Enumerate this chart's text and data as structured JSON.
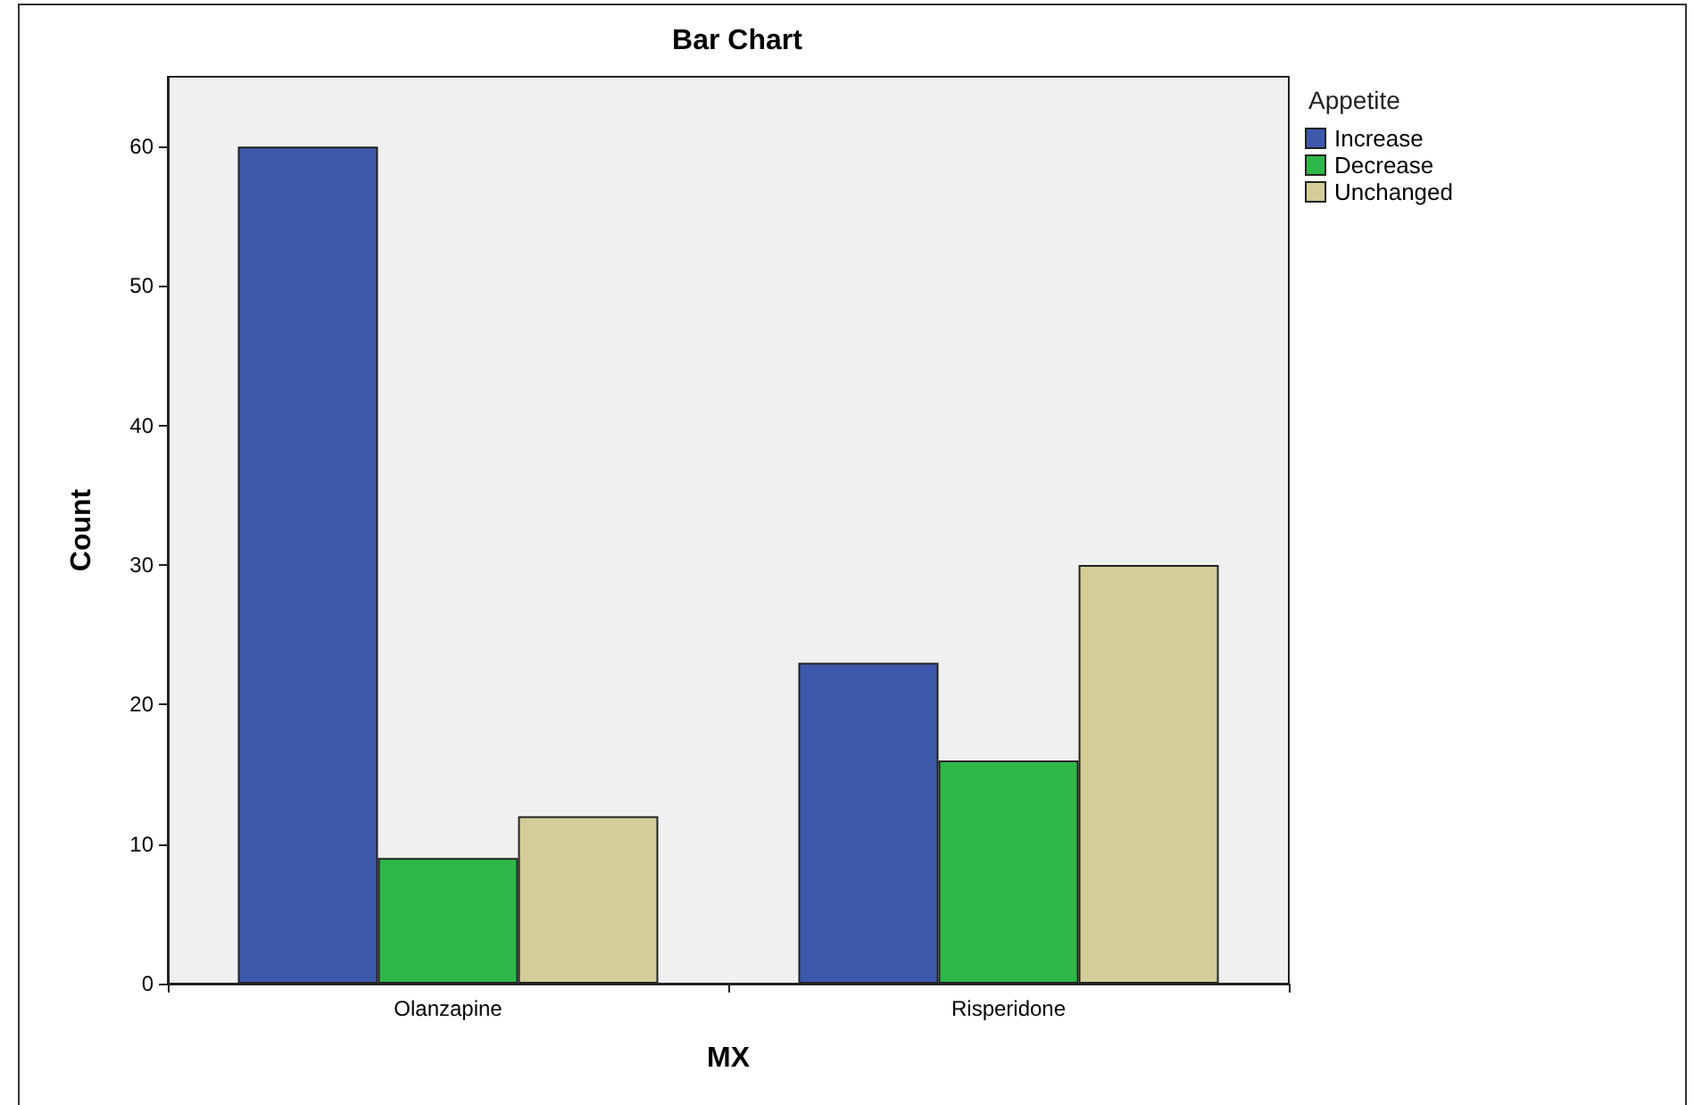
{
  "chart_data": {
    "type": "bar",
    "title": "Bar Chart",
    "xlabel": "MX",
    "ylabel": "Count",
    "legend_title": "Appetite",
    "categories": [
      "Olanzapine",
      "Risperidone"
    ],
    "series": [
      {
        "name": "Increase",
        "color": "#3e58ac",
        "values": [
          60,
          23
        ]
      },
      {
        "name": "Decrease",
        "color": "#2eb848",
        "values": [
          9,
          16
        ]
      },
      {
        "name": "Unchanged",
        "color": "#d3ce97",
        "values": [
          12,
          30
        ]
      }
    ],
    "ylim": [
      0,
      65
    ],
    "yticks": [
      0,
      10,
      20,
      30,
      40,
      50,
      60
    ],
    "grid": false,
    "legend": "top right"
  }
}
